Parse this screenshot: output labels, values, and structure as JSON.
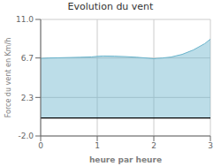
{
  "chart_data": {
    "type": "area",
    "title": "Evolution du vent",
    "xlabel": "heure par heure",
    "ylabel": "Force du vent en Km/h",
    "x": [
      0,
      0.15,
      0.3,
      0.5,
      0.7,
      0.9,
      1.0,
      1.1,
      1.3,
      1.5,
      1.7,
      1.9,
      2.0,
      2.05,
      2.15,
      2.3,
      2.5,
      2.7,
      2.9,
      3.0
    ],
    "values": [
      6.65,
      6.7,
      6.72,
      6.75,
      6.78,
      6.82,
      6.88,
      6.92,
      6.9,
      6.85,
      6.78,
      6.68,
      6.62,
      6.65,
      6.7,
      6.8,
      7.1,
      7.6,
      8.3,
      8.8
    ],
    "baseline": 0,
    "color": "#6ab4cc",
    "xlim": [
      0,
      3
    ],
    "ylim": [
      -2.0,
      11.0
    ],
    "xticks": [
      0,
      1,
      2,
      3
    ],
    "yticks": [
      {
        "value": -2.0,
        "label": "-2.0"
      },
      2.3,
      6.7,
      {
        "value": 11.0,
        "label": "11.0"
      }
    ],
    "grid": true
  }
}
